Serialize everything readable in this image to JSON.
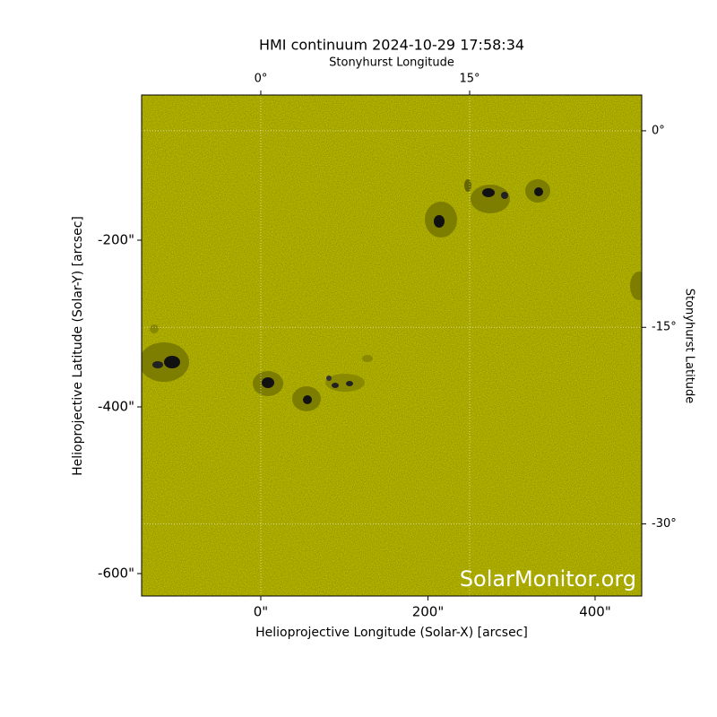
{
  "chart_data": {
    "type": "image",
    "title": "HMI continuum 2024-10-29 17:58:34",
    "x_label": "Helioprojective Longitude (Solar-X) [arcsec]",
    "y_label": "Helioprojective Latitude (Solar-Y) [arcsec]",
    "x2_label": "Stonyhurst Longitude",
    "y2_label": "Stonyhurst Latitude",
    "watermark": "SolarMonitor.org",
    "xlim": [
      -142.6,
      455.8
    ],
    "ylim": [
      -626.9,
      -25.8
    ],
    "xticks": [
      {
        "value": 0,
        "label": "0\""
      },
      {
        "value": 200,
        "label": "200\""
      },
      {
        "value": 400,
        "label": "400\""
      }
    ],
    "yticks": [
      {
        "value": -200,
        "label": "-200\""
      },
      {
        "value": -400,
        "label": "-400\""
      },
      {
        "value": -600,
        "label": "-600\""
      }
    ],
    "x2lim": [
      -8.56,
      27.36
    ],
    "x2ticks": [
      {
        "value": 0,
        "label": "0°"
      },
      {
        "value": 15,
        "label": "15°"
      }
    ],
    "y2lim": [
      -35.5,
      2.73
    ],
    "y2ticks": [
      {
        "value": 0,
        "label": "0°"
      },
      {
        "value": -15,
        "label": "-15°"
      },
      {
        "value": -30,
        "label": "-30°"
      }
    ],
    "grid": true,
    "color": "#cccc00"
  }
}
